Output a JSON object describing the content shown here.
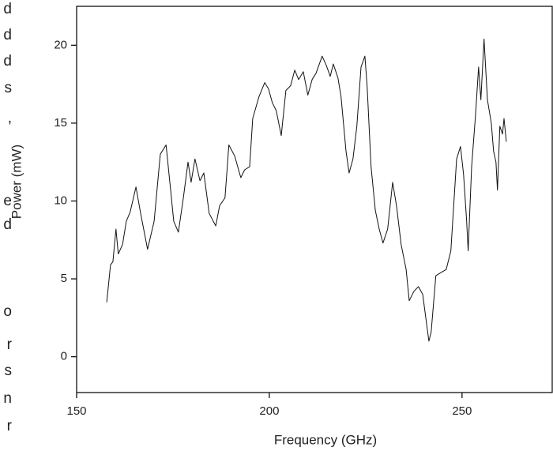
{
  "side_text": [
    "d",
    "d",
    "d",
    "s",
    ",",
    "e",
    "d",
    "o",
    "r",
    "s",
    "n",
    "r"
  ],
  "chart_data": {
    "type": "line",
    "x_label": "Frequency (GHz)",
    "y_label": "Power (mW)",
    "xlim": [
      150,
      273.4
    ],
    "ylim": [
      -2.3,
      22.5
    ],
    "xticks": [
      150,
      200,
      250
    ],
    "yticks": [
      0,
      5,
      10,
      15,
      20
    ],
    "color": "#111111",
    "x": [
      157.8,
      158.8,
      159.4,
      160.2,
      160.8,
      161.9,
      162.9,
      163.9,
      165.4,
      166.6,
      168.4,
      170.1,
      171.7,
      173.2,
      174.4,
      175.2,
      176.4,
      177.7,
      178.9,
      179.7,
      180.7,
      182.0,
      183.0,
      184.4,
      186.1,
      187.1,
      188.5,
      189.5,
      191.0,
      192.6,
      193.6,
      194.9,
      195.7,
      197.3,
      198.8,
      199.8,
      200.8,
      201.8,
      203.1,
      204.3,
      205.5,
      206.6,
      207.6,
      208.8,
      210.0,
      211.1,
      212.1,
      213.7,
      214.8,
      215.8,
      216.6,
      217.8,
      218.6,
      219.9,
      220.7,
      221.7,
      222.7,
      223.8,
      224.8,
      225.4,
      226.4,
      227.5,
      228.5,
      229.5,
      230.7,
      232.0,
      233.0,
      234.2,
      235.5,
      236.3,
      237.5,
      238.7,
      239.8,
      240.8,
      241.4,
      242.0,
      243.2,
      244.5,
      245.9,
      247.1,
      248.6,
      249.6,
      250.4,
      251.2,
      251.6,
      252.5,
      253.5,
      254.3,
      254.9,
      255.7,
      256.6,
      257.6,
      258.2,
      258.8,
      259.2,
      259.8,
      260.5,
      260.9,
      261.5
    ],
    "values": [
      3.5,
      5.9,
      6.1,
      8.2,
      6.6,
      7.2,
      8.7,
      9.3,
      10.9,
      9.2,
      6.9,
      8.7,
      13.0,
      13.6,
      10.7,
      8.7,
      8.0,
      10.2,
      12.5,
      11.2,
      12.7,
      11.3,
      11.8,
      9.2,
      8.4,
      9.7,
      10.2,
      13.6,
      12.9,
      11.5,
      12.0,
      12.2,
      15.3,
      16.7,
      17.6,
      17.2,
      16.3,
      15.8,
      14.2,
      17.1,
      17.4,
      18.4,
      17.8,
      18.3,
      16.8,
      17.8,
      18.2,
      19.3,
      18.7,
      18.0,
      18.8,
      17.9,
      16.7,
      13.2,
      11.8,
      12.7,
      14.8,
      18.6,
      19.3,
      17.3,
      12.2,
      9.4,
      8.2,
      7.3,
      8.2,
      11.2,
      9.7,
      7.2,
      5.6,
      3.6,
      4.2,
      4.5,
      4.0,
      2.1,
      1.0,
      1.6,
      5.2,
      5.4,
      5.6,
      6.8,
      12.7,
      13.5,
      11.7,
      8.7,
      6.8,
      12.2,
      15.5,
      18.6,
      16.5,
      20.4,
      16.5,
      15.0,
      13.2,
      12.5,
      10.7,
      14.8,
      14.3,
      15.3,
      13.8
    ]
  }
}
